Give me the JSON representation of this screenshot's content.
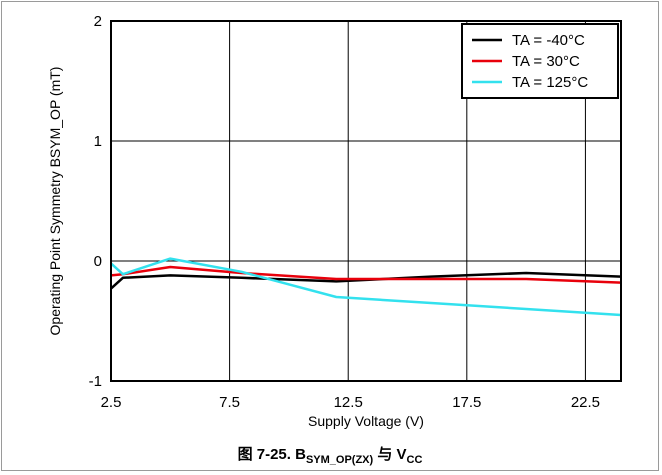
{
  "chart_data": {
    "type": "line",
    "ylabel": "Operating Point Symmetry BSYM_OP (mT)",
    "xlabel": "Supply Voltage (V)",
    "xlim": [
      2.5,
      24.0
    ],
    "ylim": [
      -1,
      2
    ],
    "x_ticks": [
      "2.5",
      "7.5",
      "12.5",
      "17.5",
      "22.5"
    ],
    "y_ticks": [
      "2",
      "1",
      "0",
      "-1"
    ],
    "grid": true,
    "legend_position": "top-right",
    "series": [
      {
        "name": "TA = -40°C",
        "color": "#000000",
        "x": [
          2.5,
          3.0,
          5.0,
          8.0,
          12.0,
          16.0,
          20.0,
          24.0
        ],
        "y": [
          -0.23,
          -0.14,
          -0.12,
          -0.14,
          -0.17,
          -0.13,
          -0.1,
          -0.13
        ]
      },
      {
        "name": "TA = 30°C",
        "color": "#e8000b",
        "x": [
          2.5,
          3.0,
          5.0,
          8.0,
          12.0,
          16.0,
          20.0,
          24.0
        ],
        "y": [
          -0.12,
          -0.11,
          -0.05,
          -0.1,
          -0.15,
          -0.15,
          -0.15,
          -0.18
        ]
      },
      {
        "name": "TA = 125°C",
        "color": "#33e1ee",
        "x": [
          2.5,
          3.0,
          5.0,
          8.0,
          12.0,
          16.0,
          20.0,
          24.0
        ],
        "y": [
          -0.02,
          -0.11,
          0.02,
          -0.09,
          -0.3,
          -0.35,
          -0.4,
          -0.45
        ]
      }
    ],
    "caption": {
      "main": "图 7-25. B",
      "subscript": "SYM_OP(ZX)",
      "middle": " 与 V",
      "subscript2": "CC"
    }
  }
}
